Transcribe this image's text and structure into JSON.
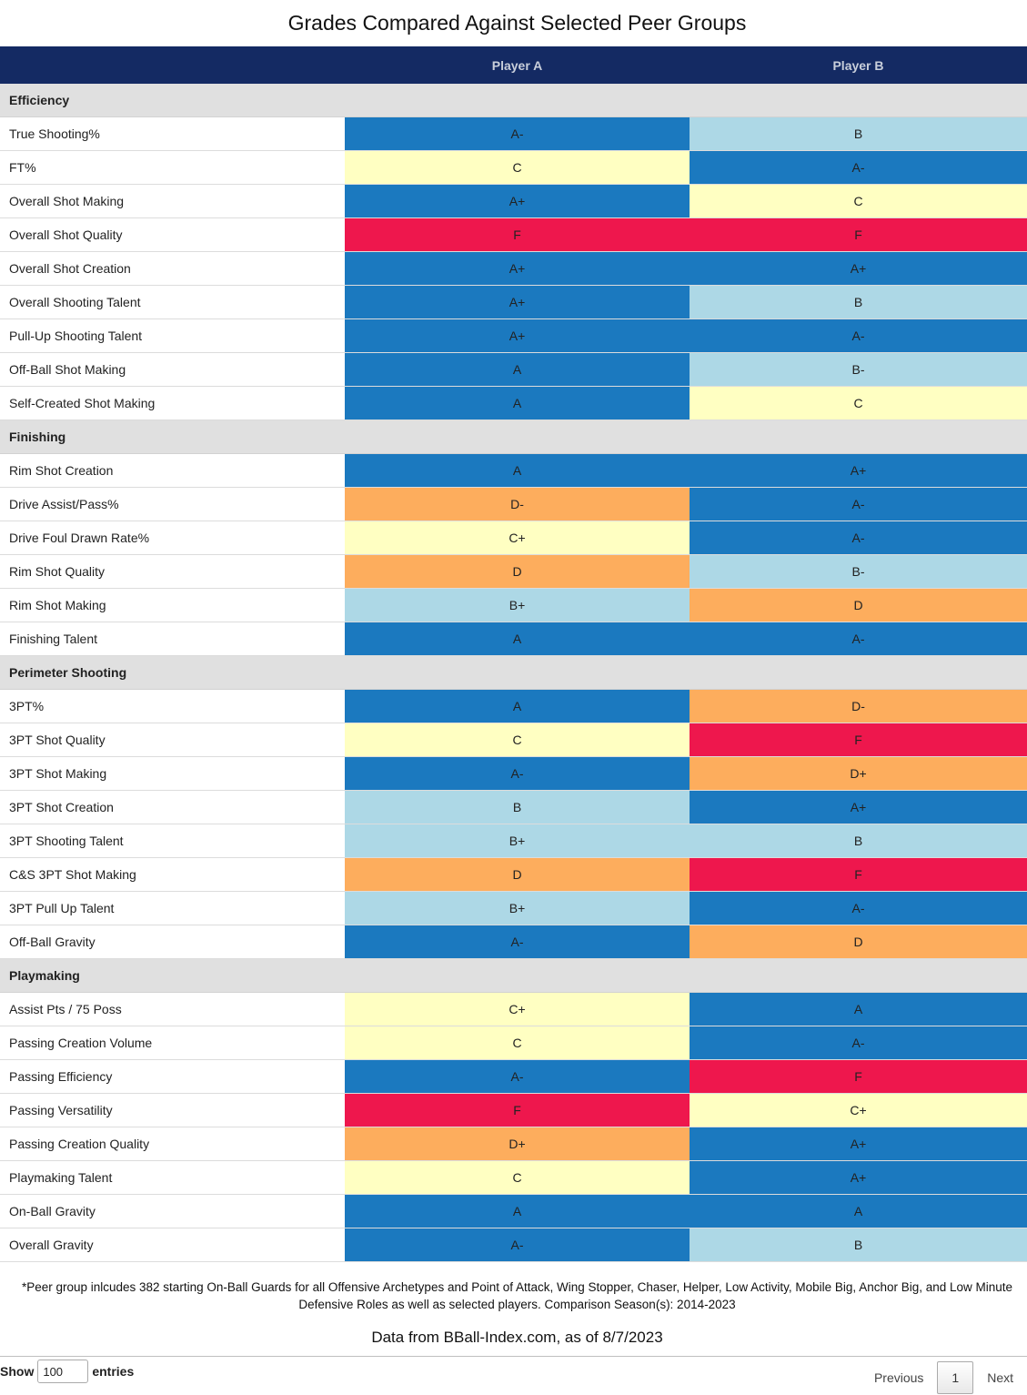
{
  "title": "Grades Compared Against Selected Peer Groups",
  "columns": [
    "",
    "Player A",
    "Player B"
  ],
  "colors": {
    "blue": "#1b79bf",
    "light": "#add8e6",
    "yellow": "#ffffc2",
    "orange": "#fdad5d",
    "red": "#ee174d"
  },
  "sections": [
    {
      "name": "Efficiency",
      "rows": [
        {
          "metric": "True Shooting%",
          "a": "A-",
          "b": "B"
        },
        {
          "metric": "FT%",
          "a": "C",
          "b": "A-"
        },
        {
          "metric": "Overall Shot Making",
          "a": "A+",
          "b": "C"
        },
        {
          "metric": "Overall Shot Quality",
          "a": "F",
          "b": "F"
        },
        {
          "metric": "Overall Shot Creation",
          "a": "A+",
          "b": "A+"
        },
        {
          "metric": "Overall Shooting Talent",
          "a": "A+",
          "b": "B"
        },
        {
          "metric": "Pull-Up Shooting Talent",
          "a": "A+",
          "b": "A-"
        },
        {
          "metric": "Off-Ball Shot Making",
          "a": "A",
          "b": "B-"
        },
        {
          "metric": "Self-Created Shot Making",
          "a": "A",
          "b": "C"
        }
      ]
    },
    {
      "name": "Finishing",
      "rows": [
        {
          "metric": "Rim Shot Creation",
          "a": "A",
          "b": "A+"
        },
        {
          "metric": "Drive Assist/Pass%",
          "a": "D-",
          "b": "A-"
        },
        {
          "metric": "Drive Foul Drawn Rate%",
          "a": "C+",
          "b": "A-"
        },
        {
          "metric": "Rim Shot Quality",
          "a": "D",
          "b": "B-"
        },
        {
          "metric": "Rim Shot Making",
          "a": "B+",
          "b": "D"
        },
        {
          "metric": "Finishing Talent",
          "a": "A",
          "b": "A-"
        }
      ]
    },
    {
      "name": "Perimeter Shooting",
      "rows": [
        {
          "metric": "3PT%",
          "a": "A",
          "b": "D-"
        },
        {
          "metric": "3PT Shot Quality",
          "a": "C",
          "b": "F"
        },
        {
          "metric": "3PT Shot Making",
          "a": "A-",
          "b": "D+"
        },
        {
          "metric": "3PT Shot Creation",
          "a": "B",
          "b": "A+"
        },
        {
          "metric": "3PT Shooting Talent",
          "a": "B+",
          "b": "B"
        },
        {
          "metric": "C&S 3PT Shot Making",
          "a": "D",
          "b": "F"
        },
        {
          "metric": "3PT Pull Up Talent",
          "a": "B+",
          "b": "A-"
        },
        {
          "metric": "Off-Ball Gravity",
          "a": "A-",
          "b": "D"
        }
      ]
    },
    {
      "name": "Playmaking",
      "rows": [
        {
          "metric": "Assist Pts / 75 Poss",
          "a": "C+",
          "b": "A"
        },
        {
          "metric": "Passing Creation Volume",
          "a": "C",
          "b": "A-"
        },
        {
          "metric": "Passing Efficiency",
          "a": "A-",
          "b": "F"
        },
        {
          "metric": "Passing Versatility",
          "a": "F",
          "b": "C+"
        },
        {
          "metric": "Passing Creation Quality",
          "a": "D+",
          "b": "A+"
        },
        {
          "metric": "Playmaking Talent",
          "a": "C",
          "b": "A+"
        },
        {
          "metric": "On-Ball Gravity",
          "a": "A",
          "b": "A"
        },
        {
          "metric": "Overall Gravity",
          "a": "A-",
          "b": "B"
        }
      ]
    }
  ],
  "footnote_line1": "*Peer group inlcudes 382 starting On-Ball Guards for all Offensive Archetypes and Point of Attack, Wing Stopper, Chaser, Helper, Low Activity, Mobile Big, Anchor Big, and Low Minute",
  "footnote_line2": "Defensive Roles as well as selected players. Comparison Season(s): 2014-2023",
  "source": "Data from BBall-Index.com, as of 8/7/2023",
  "length": {
    "show_label": "Show",
    "value": "100",
    "entries_label": "entries"
  },
  "pagination": {
    "previous": "Previous",
    "current_page": "1",
    "next": "Next"
  }
}
